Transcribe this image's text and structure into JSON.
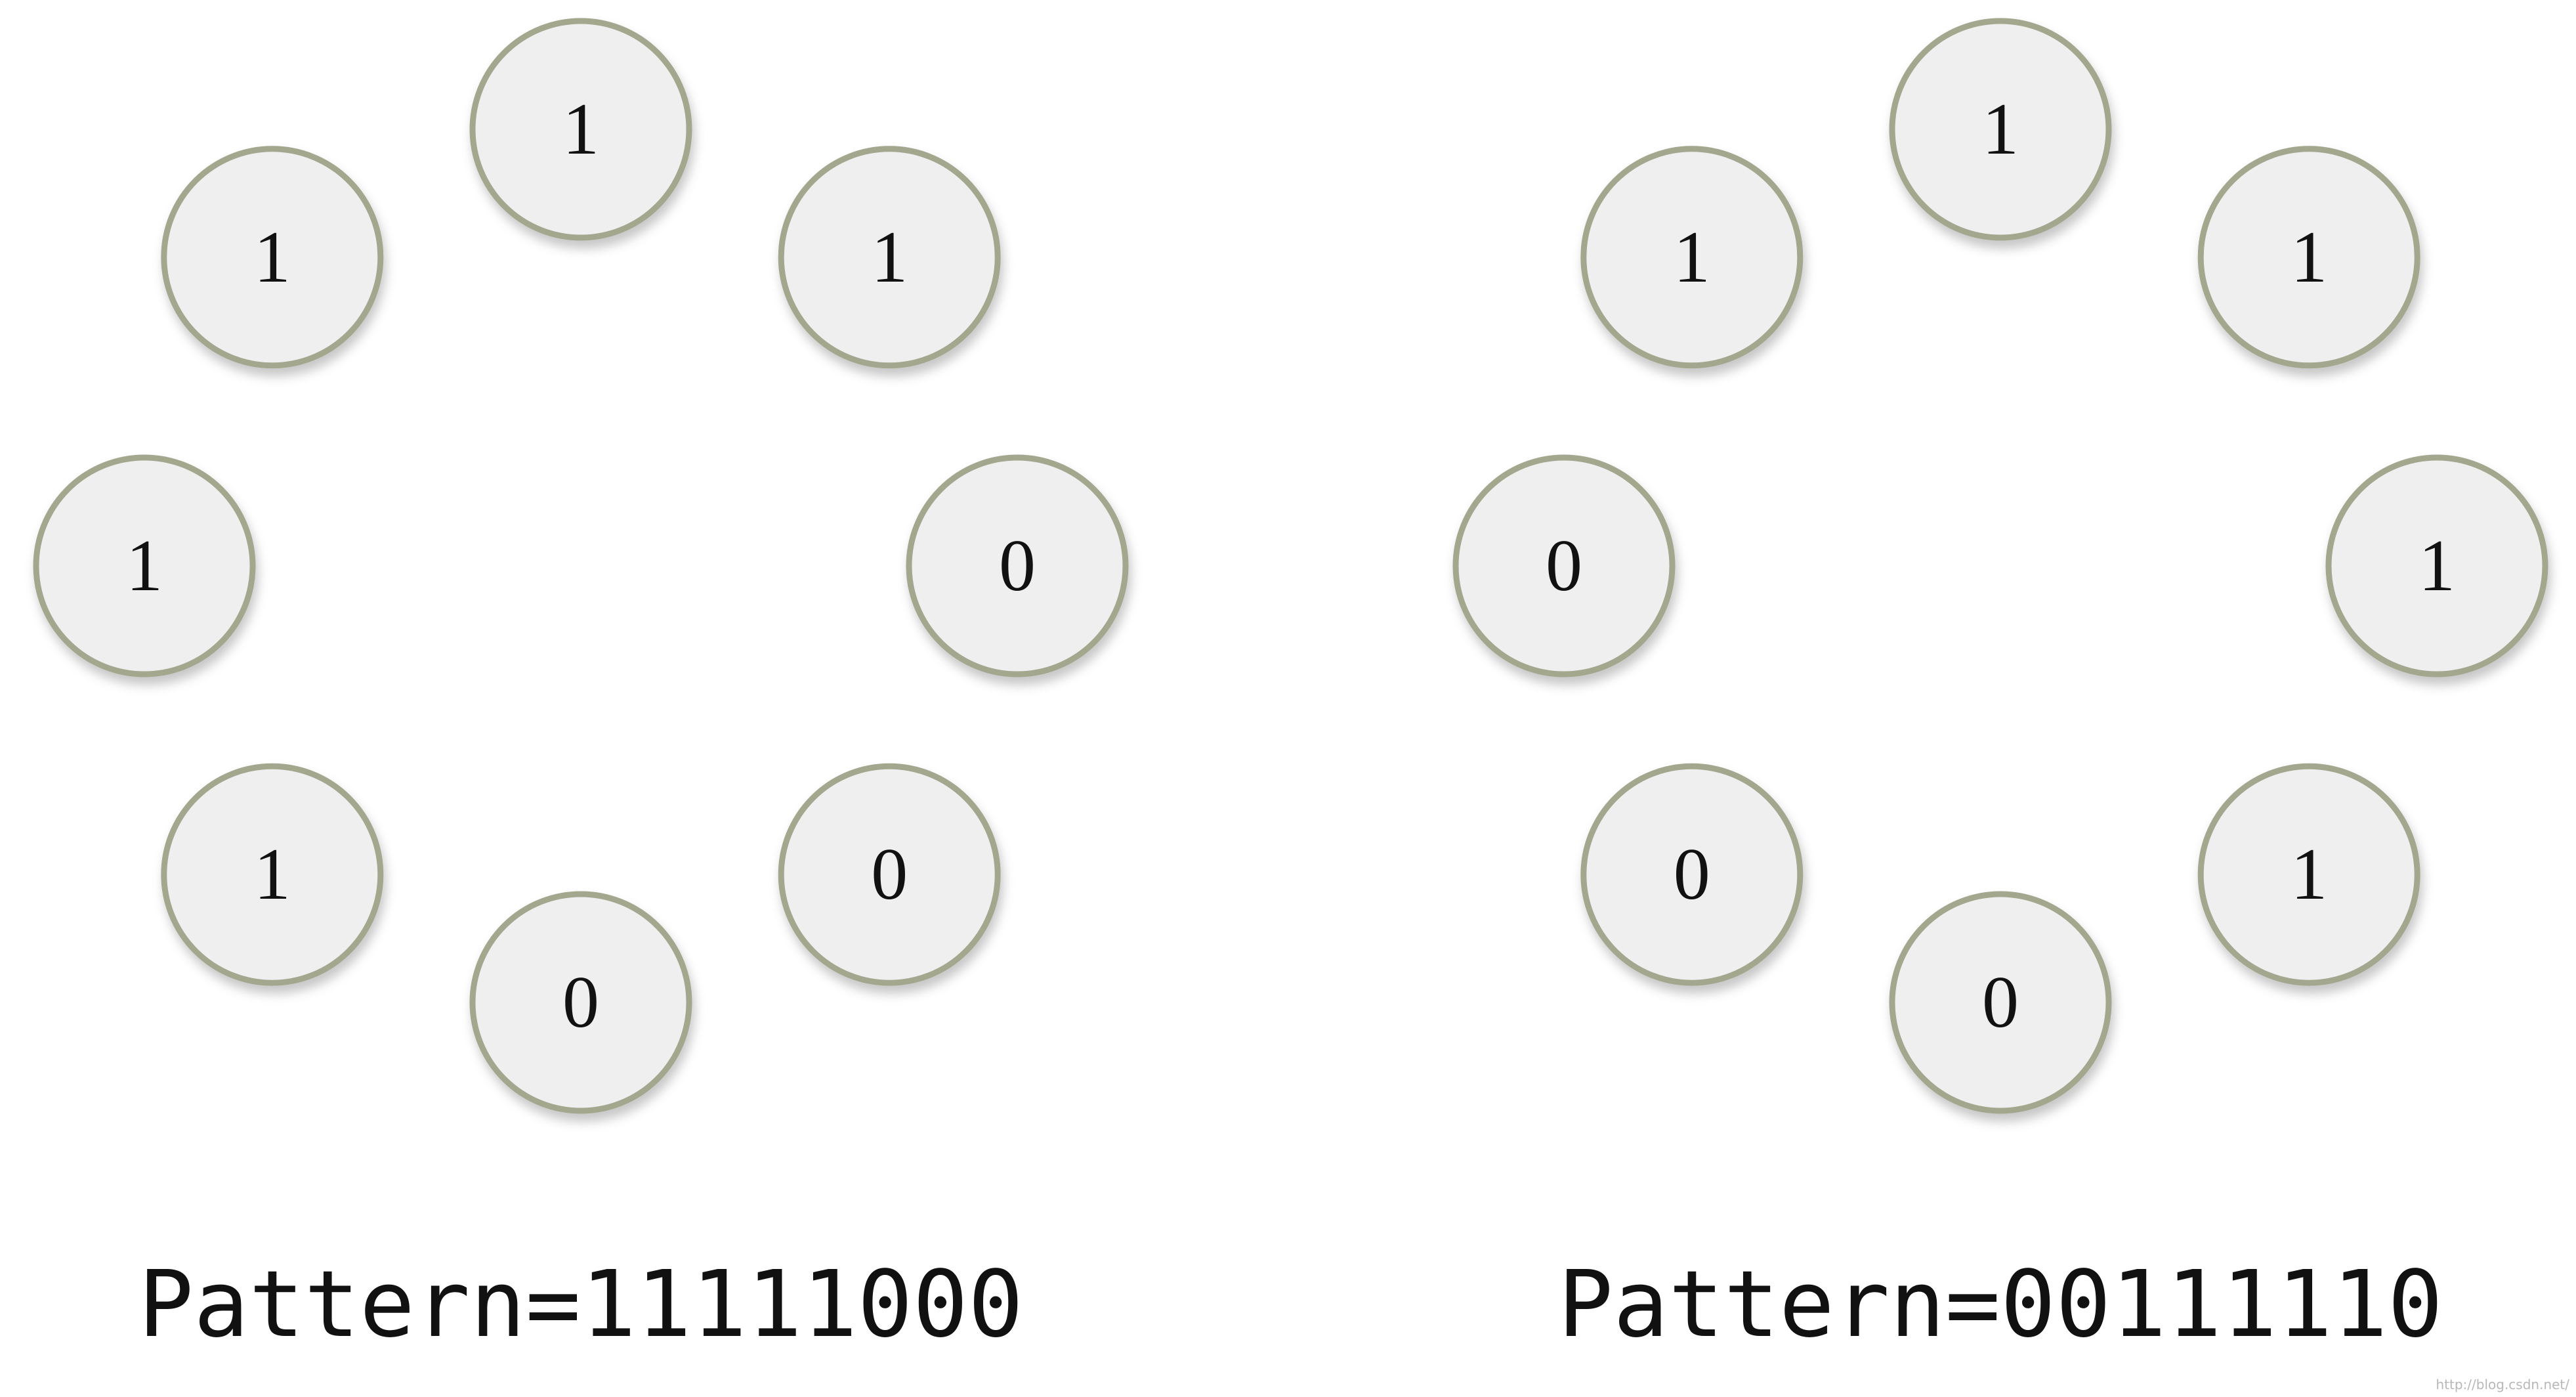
{
  "diagrams": [
    {
      "nodes": [
        "0",
        "0",
        "0",
        "1",
        "1",
        "1",
        "1",
        "1"
      ],
      "caption": "Pattern=11111000"
    },
    {
      "nodes": [
        "1",
        "1",
        "0",
        "0",
        "0",
        "1",
        "1",
        "1"
      ],
      "caption": "Pattern=00111110"
    }
  ],
  "watermark": "http://blog.csdn.net/"
}
